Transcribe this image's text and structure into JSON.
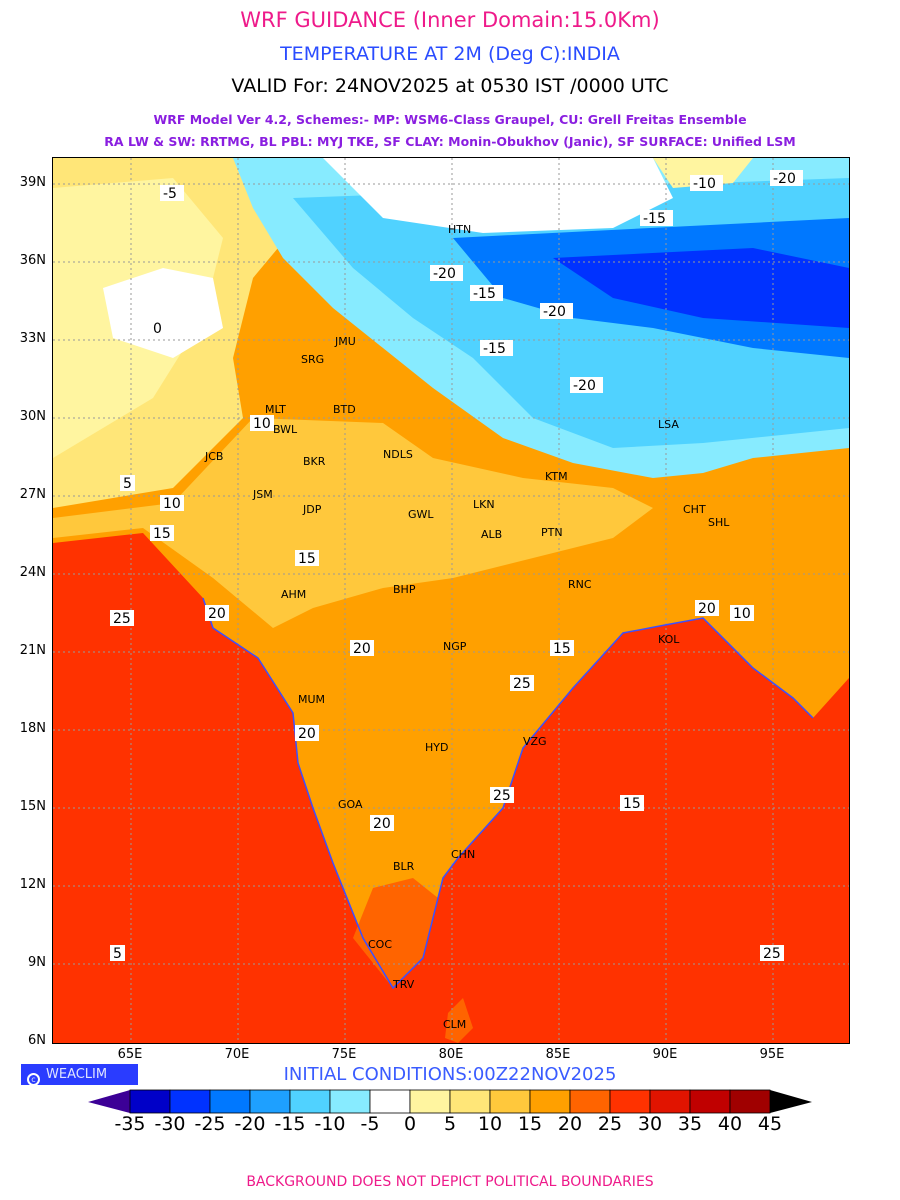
{
  "header": {
    "title": "WRF GUIDANCE (Inner Domain:15.0Km)",
    "variable": "TEMPERATURE AT 2M (Deg C):INDIA",
    "valid": "VALID For: 24NOV2025 at 0530 IST /0000 UTC",
    "model_line1": "WRF Model Ver 4.2, Schemes:- MP: WSM6-Class Graupel, CU: Grell Freitas Ensemble",
    "model_line2": "RA LW & SW: RRTMG, BL PBL: MYJ TKE, SF CLAY: Monin-Obukhov (Janic), SF SURFACE: Unified LSM"
  },
  "axes": {
    "lat_labels": [
      "39N",
      "36N",
      "33N",
      "30N",
      "27N",
      "24N",
      "21N",
      "18N",
      "15N",
      "12N",
      "9N",
      "6N"
    ],
    "lon_labels": [
      "65E",
      "70E",
      "75E",
      "80E",
      "85E",
      "90E",
      "95E"
    ]
  },
  "cities": [
    "HTN",
    "SRG",
    "JMU",
    "MLT",
    "BWL",
    "BTD",
    "NDLS",
    "BKR",
    "JSM",
    "JDP",
    "JCB",
    "GWL",
    "LKN",
    "ALB",
    "PTN",
    "KTM",
    "AHM",
    "BHP",
    "NGP",
    "RNC",
    "KOL",
    "HYD",
    "CHN",
    "BLR",
    "COC",
    "TRV",
    "CLM",
    "LSA",
    "CHT",
    "SHL",
    "MUM",
    "VZG",
    "GOA"
  ],
  "contour_labels": [
    "-20",
    "-15",
    "-10",
    "-5",
    "0",
    "5",
    "10",
    "15",
    "20",
    "25",
    "-20",
    "-15",
    "-20",
    "-15",
    "-20",
    "10",
    "15",
    "20",
    "25",
    "20",
    "25",
    "15",
    "20",
    "25",
    "20",
    "15",
    "10",
    "5"
  ],
  "logo": "WEACLIM",
  "initial_conditions": "INITIAL CONDITIONS:00Z22NOV2025",
  "colorbar": {
    "labels": [
      "-35",
      "-30",
      "-25",
      "-20",
      "-15",
      "-10",
      "-5",
      "0",
      "5",
      "10",
      "15",
      "20",
      "25",
      "30",
      "35",
      "40",
      "45"
    ],
    "colors": [
      "#0000c8",
      "#0032ff",
      "#0078ff",
      "#1ea0ff",
      "#50d2ff",
      "#87ebff",
      "#ffffff",
      "#fff5a0",
      "#ffe678",
      "#ffc83c",
      "#ffa000",
      "#ff6400",
      "#ff3200",
      "#e11400",
      "#c00000",
      "#a00000"
    ],
    "under_color": "#3c0096",
    "over_color": "#000000"
  },
  "footer": "BACKGROUND DOES NOT DEPICT POLITICAL BOUNDARIES"
}
